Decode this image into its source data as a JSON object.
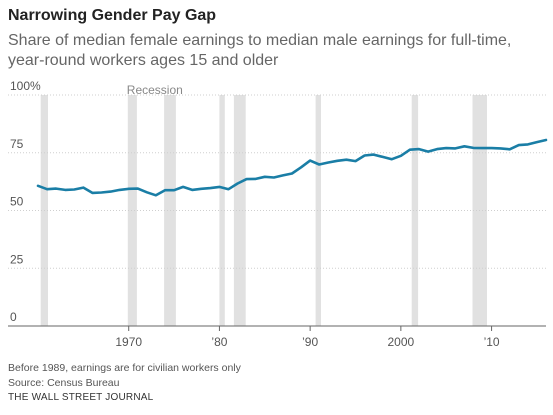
{
  "chart_data": {
    "type": "line",
    "title": "Narrowing Gender Pay Gap",
    "subtitle": "Share of median female earnings to median male earnings for full-time, year-round workers ages 15 and older",
    "xlabel": "",
    "ylabel": "",
    "xlim": [
      1960,
      2016
    ],
    "ylim": [
      0,
      100
    ],
    "x_ticks": [
      {
        "value": 1970,
        "label": "1970"
      },
      {
        "value": 1980,
        "label": "’80"
      },
      {
        "value": 1990,
        "label": "’90"
      },
      {
        "value": 2000,
        "label": "2000"
      },
      {
        "value": 2010,
        "label": "’10"
      }
    ],
    "y_ticks": [
      {
        "value": 0,
        "label": "0"
      },
      {
        "value": 25,
        "label": "25"
      },
      {
        "value": 50,
        "label": "50"
      },
      {
        "value": 75,
        "label": "75"
      },
      {
        "value": 100,
        "label": "100%"
      }
    ],
    "grid": "horizontal",
    "recession_label": "Recession",
    "recessions": [
      [
        1960.3,
        1961.1
      ],
      [
        1969.9,
        1970.9
      ],
      [
        1973.9,
        1975.2
      ],
      [
        1980.0,
        1980.6
      ],
      [
        1981.6,
        1982.9
      ],
      [
        1990.6,
        1991.2
      ],
      [
        2001.2,
        2001.9
      ],
      [
        2007.9,
        2009.5
      ]
    ],
    "series": [
      {
        "color": "#1a7ea6",
        "x": [
          1960,
          1961,
          1962,
          1963,
          1964,
          1965,
          1966,
          1967,
          1968,
          1969,
          1970,
          1971,
          1972,
          1973,
          1974,
          1975,
          1976,
          1977,
          1978,
          1979,
          1980,
          1981,
          1982,
          1983,
          1984,
          1985,
          1986,
          1987,
          1988,
          1989,
          1990,
          1991,
          1992,
          1993,
          1994,
          1995,
          1996,
          1997,
          1998,
          1999,
          2000,
          2001,
          2002,
          2003,
          2004,
          2005,
          2006,
          2007,
          2008,
          2009,
          2010,
          2011,
          2012,
          2013,
          2014,
          2015,
          2016
        ],
        "y": [
          60.7,
          59.2,
          59.5,
          58.9,
          59.1,
          59.9,
          57.6,
          57.8,
          58.2,
          58.9,
          59.4,
          59.5,
          57.9,
          56.6,
          58.8,
          58.8,
          60.2,
          58.9,
          59.4,
          59.7,
          60.2,
          59.2,
          61.7,
          63.6,
          63.7,
          64.6,
          64.3,
          65.2,
          66.0,
          68.7,
          71.6,
          69.9,
          70.8,
          71.5,
          72.0,
          71.4,
          73.8,
          74.2,
          73.2,
          72.2,
          73.7,
          76.3,
          76.6,
          75.5,
          76.6,
          77.0,
          76.9,
          77.8,
          77.1,
          77.0,
          77.0,
          76.9,
          76.5,
          78.3,
          78.6,
          79.6,
          80.5
        ]
      }
    ]
  },
  "footnotes": {
    "note": "Before 1989, earnings are for civilian workers only",
    "source": "Source: Census Bureau",
    "credit": "THE WALL STREET JOURNAL"
  }
}
